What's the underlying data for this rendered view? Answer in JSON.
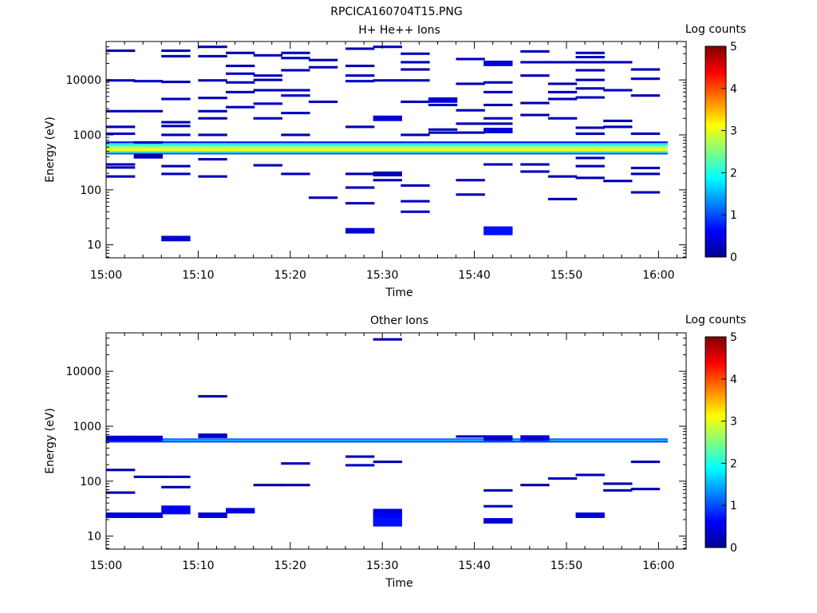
{
  "figure_title": "RPCICA160704T15.PNG",
  "colorbar": {
    "label": "Log counts",
    "ticks": [
      "0",
      "1",
      "2",
      "3",
      "4",
      "5"
    ],
    "stops": [
      "#00008f",
      "#0000ff",
      "#0080ff",
      "#00ffff",
      "#80ff80",
      "#ffff00",
      "#ff8000",
      "#ff0000",
      "#800000"
    ]
  },
  "chart_data": [
    {
      "type": "heatmap",
      "title": "H+ He++ Ions",
      "xlabel": "Time",
      "ylabel": "Energy (eV)",
      "xlim": [
        "15:00",
        "16:03"
      ],
      "ylim": [
        5.8,
        50000
      ],
      "yscale": "log",
      "clim": [
        0,
        5
      ],
      "colorbar_label": "Log counts",
      "x_ticks": [
        "15:00",
        "15:10",
        "15:20",
        "15:30",
        "15:40",
        "15:50",
        "16:00"
      ],
      "y_ticks": [
        "10",
        "100",
        "1000",
        "10000"
      ],
      "grid": false,
      "time_bins": [
        "15:00",
        "15:03",
        "15:06",
        "15:10",
        "15:13",
        "15:16",
        "15:19",
        "15:22",
        "15:26",
        "15:29",
        "15:32",
        "15:35",
        "15:38",
        "15:41",
        "15:45",
        "15:48",
        "15:51",
        "15:54",
        "15:57",
        "16:00"
      ],
      "band": {
        "start": "15:00",
        "end": "16:01",
        "rows": [
          {
            "e_min": 440,
            "e_max": 475,
            "value": 1.1
          },
          {
            "e_min": 475,
            "e_max": 510,
            "value": 2.1
          },
          {
            "e_min": 510,
            "e_max": 560,
            "value": 3.1
          },
          {
            "e_min": 560,
            "e_max": 610,
            "value": 2.9
          },
          {
            "e_min": 610,
            "e_max": 660,
            "value": 2.3
          },
          {
            "e_min": 660,
            "e_max": 710,
            "value": 1.8
          },
          {
            "e_min": 710,
            "e_max": 760,
            "value": 0.7
          }
        ]
      },
      "cells": [
        [
          "15:00",
          34000,
          0.2
        ],
        [
          "15:00",
          9800,
          0.2
        ],
        [
          "15:00",
          2700,
          0.2
        ],
        [
          "15:00",
          1400,
          0.2
        ],
        [
          "15:00",
          1050,
          0.3
        ],
        [
          "15:00",
          290,
          0.2
        ],
        [
          "15:00",
          255,
          0.2
        ],
        [
          "15:00",
          175,
          0.2
        ],
        [
          "15:03",
          9500,
          0.3
        ],
        [
          "15:03",
          2700,
          0.2
        ],
        [
          "15:03",
          730,
          0.3
        ],
        [
          "15:03",
          430,
          0.2
        ],
        [
          "15:03",
          390,
          0.2
        ],
        [
          "15:06",
          34000,
          0.2
        ],
        [
          "15:06",
          27000,
          0.2
        ],
        [
          "15:06",
          9200,
          0.2
        ],
        [
          "15:06",
          4500,
          0.3
        ],
        [
          "15:06",
          1700,
          0.2
        ],
        [
          "15:06",
          1450,
          0.2
        ],
        [
          "15:06",
          1000,
          0.2
        ],
        [
          "15:06",
          270,
          0.2
        ],
        [
          "15:06",
          195,
          0.3
        ],
        [
          "15:06",
          13,
          0.4
        ],
        [
          "15:10",
          40000,
          0.2
        ],
        [
          "15:10",
          27000,
          0.2
        ],
        [
          "15:10",
          9800,
          0.2
        ],
        [
          "15:10",
          4700,
          0.2
        ],
        [
          "15:10",
          2700,
          0.2
        ],
        [
          "15:10",
          2000,
          0.2
        ],
        [
          "15:10",
          1000,
          0.2
        ],
        [
          "15:10",
          360,
          0.2
        ],
        [
          "15:10",
          175,
          0.2
        ],
        [
          "15:13",
          31000,
          0.2
        ],
        [
          "15:13",
          18000,
          0.2
        ],
        [
          "15:13",
          13000,
          0.3
        ],
        [
          "15:13",
          9000,
          0.3
        ],
        [
          "15:13",
          6000,
          0.2
        ],
        [
          "15:13",
          3200,
          0.3
        ],
        [
          "15:16",
          28000,
          0.2
        ],
        [
          "15:16",
          12000,
          0.2
        ],
        [
          "15:16",
          10000,
          0.2
        ],
        [
          "15:16",
          6500,
          0.2
        ],
        [
          "15:16",
          3700,
          0.3
        ],
        [
          "15:16",
          2000,
          0.2
        ],
        [
          "15:16",
          280,
          0.2
        ],
        [
          "15:19",
          31000,
          0.3
        ],
        [
          "15:19",
          25000,
          0.3
        ],
        [
          "15:19",
          15000,
          0.2
        ],
        [
          "15:19",
          6500,
          0.3
        ],
        [
          "15:19",
          5200,
          0.3
        ],
        [
          "15:19",
          2500,
          0.3
        ],
        [
          "15:19",
          1000,
          0.2
        ],
        [
          "15:19",
          195,
          0.3
        ],
        [
          "15:22",
          23000,
          0.2
        ],
        [
          "15:22",
          17000,
          0.2
        ],
        [
          "15:22",
          4000,
          0.3
        ],
        [
          "15:22",
          72,
          0.2
        ],
        [
          "15:26",
          37000,
          0.2
        ],
        [
          "15:26",
          18000,
          0.2
        ],
        [
          "15:26",
          12000,
          0.2
        ],
        [
          "15:26",
          9500,
          0.3
        ],
        [
          "15:26",
          1400,
          0.2
        ],
        [
          "15:26",
          195,
          0.2
        ],
        [
          "15:26",
          110,
          0.2
        ],
        [
          "15:26",
          57,
          0.2
        ],
        [
          "15:26",
          18,
          0.4
        ],
        [
          "15:29",
          40000,
          0.3
        ],
        [
          "15:29",
          9800,
          0.2
        ],
        [
          "15:29",
          2000,
          0.4
        ],
        [
          "15:29",
          205,
          0.2
        ],
        [
          "15:29",
          185,
          0.2
        ],
        [
          "15:29",
          150,
          0.2
        ],
        [
          "15:32",
          30000,
          0.3
        ],
        [
          "15:32",
          21000,
          0.2
        ],
        [
          "15:32",
          15500,
          0.2
        ],
        [
          "15:32",
          9800,
          0.2
        ],
        [
          "15:32",
          4000,
          0.2
        ],
        [
          "15:32",
          1000,
          0.2
        ],
        [
          "15:32",
          120,
          0.2
        ],
        [
          "15:32",
          62,
          0.3
        ],
        [
          "15:32",
          40,
          0.3
        ],
        [
          "15:35",
          4300,
          0.4
        ],
        [
          "15:35",
          3500,
          0.3
        ],
        [
          "15:35",
          1250,
          0.2
        ],
        [
          "15:35",
          1100,
          0.2
        ],
        [
          "15:38",
          24000,
          0.3
        ],
        [
          "15:38",
          8500,
          0.2
        ],
        [
          "15:38",
          2800,
          0.2
        ],
        [
          "15:38",
          1600,
          0.2
        ],
        [
          "15:38",
          1100,
          0.2
        ],
        [
          "15:38",
          150,
          0.2
        ],
        [
          "15:38",
          82,
          0.2
        ],
        [
          "15:41",
          20000,
          0.4
        ],
        [
          "15:41",
          9000,
          0.2
        ],
        [
          "15:41",
          6000,
          0.2
        ],
        [
          "15:41",
          3500,
          0.2
        ],
        [
          "15:41",
          2000,
          0.2
        ],
        [
          "15:41",
          1600,
          0.2
        ],
        [
          "15:41",
          1200,
          0.4
        ],
        [
          "15:41",
          290,
          0.2
        ],
        [
          "15:41",
          18,
          0.7
        ],
        [
          "15:45",
          33000,
          0.2
        ],
        [
          "15:45",
          21000,
          0.2
        ],
        [
          "15:45",
          12000,
          0.2
        ],
        [
          "15:45",
          3800,
          0.2
        ],
        [
          "15:45",
          2300,
          0.2
        ],
        [
          "15:45",
          290,
          0.2
        ],
        [
          "15:45",
          215,
          0.2
        ],
        [
          "15:48",
          21000,
          0.2
        ],
        [
          "15:48",
          8500,
          0.2
        ],
        [
          "15:48",
          6000,
          0.2
        ],
        [
          "15:48",
          4500,
          0.3
        ],
        [
          "15:48",
          2000,
          0.2
        ],
        [
          "15:48",
          175,
          0.2
        ],
        [
          "15:48",
          68,
          0.2
        ],
        [
          "15:51",
          31000,
          0.3
        ],
        [
          "15:51",
          26000,
          0.3
        ],
        [
          "15:51",
          21000,
          0.2
        ],
        [
          "15:51",
          15000,
          0.2
        ],
        [
          "15:51",
          10000,
          0.2
        ],
        [
          "15:51",
          7000,
          0.2
        ],
        [
          "15:51",
          4800,
          0.3
        ],
        [
          "15:51",
          1350,
          0.2
        ],
        [
          "15:51",
          1050,
          0.2
        ],
        [
          "15:51",
          380,
          0.2
        ],
        [
          "15:51",
          270,
          0.2
        ],
        [
          "15:51",
          165,
          0.2
        ],
        [
          "15:54",
          21000,
          0.2
        ],
        [
          "15:54",
          6500,
          0.3
        ],
        [
          "15:54",
          1800,
          0.2
        ],
        [
          "15:54",
          1400,
          0.2
        ],
        [
          "15:54",
          145,
          0.2
        ],
        [
          "15:57",
          15500,
          0.2
        ],
        [
          "15:57",
          10500,
          0.3
        ],
        [
          "15:57",
          5200,
          0.2
        ],
        [
          "15:57",
          1050,
          0.2
        ],
        [
          "15:57",
          250,
          0.2
        ],
        [
          "15:57",
          195,
          0.3
        ],
        [
          "15:57",
          90,
          0.2
        ]
      ]
    },
    {
      "type": "heatmap",
      "title": "Other Ions",
      "xlabel": "Time",
      "ylabel": "Energy (eV)",
      "xlim": [
        "15:00",
        "16:03"
      ],
      "ylim": [
        5.8,
        50000
      ],
      "yscale": "log",
      "clim": [
        0,
        5
      ],
      "colorbar_label": "Log counts",
      "x_ticks": [
        "15:00",
        "15:10",
        "15:20",
        "15:30",
        "15:40",
        "15:50",
        "16:00"
      ],
      "y_ticks": [
        "10",
        "100",
        "1000",
        "10000"
      ],
      "grid": false,
      "time_bins": [
        "15:00",
        "15:03",
        "15:06",
        "15:10",
        "15:13",
        "15:16",
        "15:19",
        "15:22",
        "15:26",
        "15:29",
        "15:32",
        "15:35",
        "15:38",
        "15:41",
        "15:45",
        "15:48",
        "15:51",
        "15:54",
        "15:57",
        "16:00"
      ],
      "band": {
        "start": "15:00",
        "end": "16:01",
        "rows": [
          {
            "e_min": 505,
            "e_max": 540,
            "value": 0.9
          },
          {
            "e_min": 540,
            "e_max": 570,
            "value": 1.6
          },
          {
            "e_min": 570,
            "e_max": 600,
            "value": 1.0
          }
        ]
      },
      "cells": [
        [
          "15:00",
          600,
          0.4
        ],
        [
          "15:00",
          160,
          0.2
        ],
        [
          "15:00",
          62,
          0.2
        ],
        [
          "15:00",
          24,
          0.4
        ],
        [
          "15:03",
          600,
          0.4
        ],
        [
          "15:03",
          120,
          0.2
        ],
        [
          "15:03",
          24,
          0.4
        ],
        [
          "15:06",
          120,
          0.2
        ],
        [
          "15:06",
          78,
          0.2
        ],
        [
          "15:06",
          30,
          0.6
        ],
        [
          "15:10",
          3500,
          0.2
        ],
        [
          "15:10",
          700,
          0.3
        ],
        [
          "15:10",
          640,
          0.3
        ],
        [
          "15:10",
          24,
          0.4
        ],
        [
          "15:13",
          29,
          0.4
        ],
        [
          "15:16",
          85,
          0.1
        ],
        [
          "15:19",
          210,
          0.2
        ],
        [
          "15:19",
          85,
          0.1
        ],
        [
          "15:26",
          280,
          0.2
        ],
        [
          "15:26",
          195,
          0.3
        ],
        [
          "15:29",
          38000,
          0.2
        ],
        [
          "15:29",
          225,
          0.2
        ],
        [
          "15:29",
          28,
          0.4
        ],
        [
          "15:29",
          22,
          0.6
        ],
        [
          "15:29",
          18,
          0.7
        ],
        [
          "15:38",
          650,
          0.3
        ],
        [
          "15:41",
          610,
          0.4
        ],
        [
          "15:41",
          68,
          0.2
        ],
        [
          "15:41",
          35,
          0.3
        ],
        [
          "15:41",
          19,
          0.4
        ],
        [
          "15:45",
          610,
          0.4
        ],
        [
          "15:45",
          85,
          0.1
        ],
        [
          "15:48",
          112,
          0.3
        ],
        [
          "15:51",
          130,
          0.3
        ],
        [
          "15:51",
          24,
          0.4
        ],
        [
          "15:54",
          90,
          0.2
        ],
        [
          "15:54",
          68,
          0.2
        ],
        [
          "15:57",
          225,
          0.2
        ],
        [
          "15:57",
          72,
          0.2
        ]
      ]
    }
  ]
}
